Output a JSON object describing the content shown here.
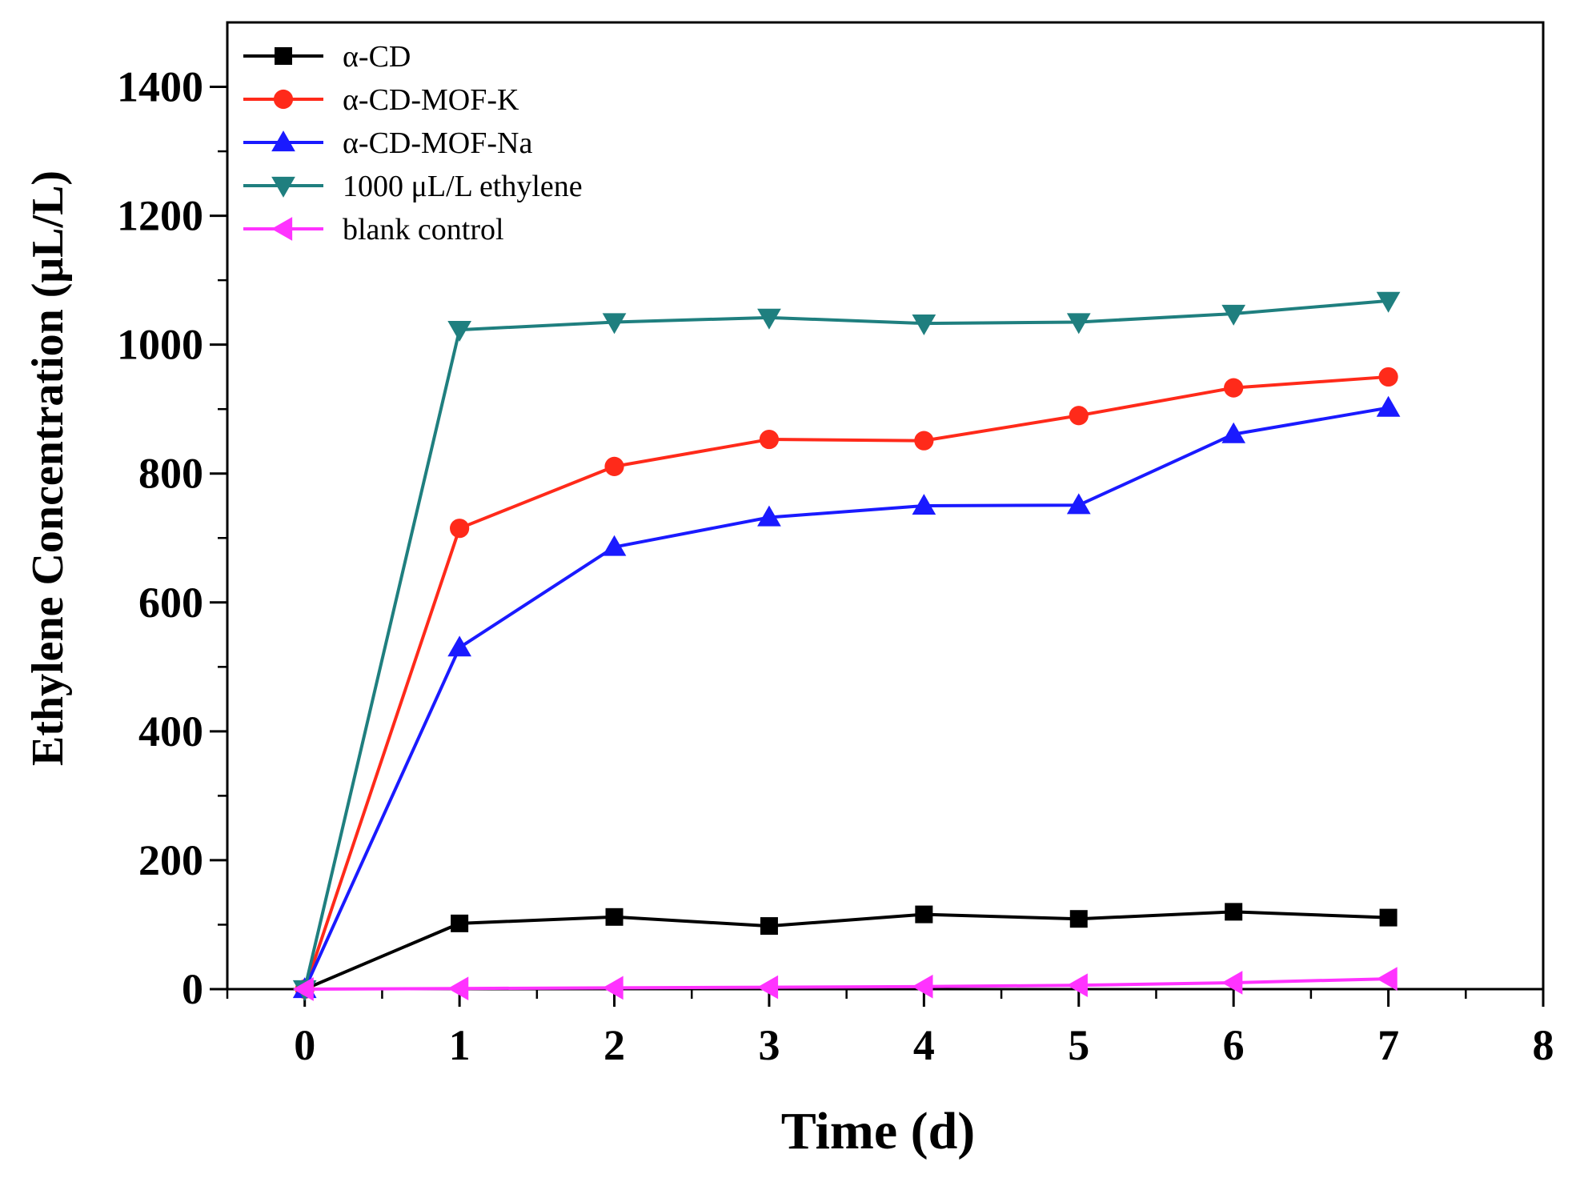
{
  "chart_data": {
    "type": "line",
    "xlabel": "Time (d)",
    "ylabel": "Ethylene Concentration (μL/L)",
    "xlim": [
      -0.5,
      8
    ],
    "ylim": [
      0,
      1500
    ],
    "xticks": [
      "0",
      "1",
      "2",
      "3",
      "4",
      "5",
      "6",
      "7",
      "8"
    ],
    "yticks": [
      "0",
      "200",
      "400",
      "600",
      "800",
      "1000",
      "1200",
      "1400"
    ],
    "legend_position": "top-left",
    "x": [
      0,
      1,
      2,
      3,
      4,
      5,
      6,
      7
    ],
    "series": [
      {
        "name": "α-CD",
        "color": "#000000",
        "marker": "square",
        "values": [
          0,
          102,
          112,
          98,
          116,
          109,
          120,
          111
        ]
      },
      {
        "name": "α-CD-MOF-K",
        "color": "#ff2a1a",
        "marker": "circle",
        "values": [
          0,
          715,
          811,
          853,
          851,
          890,
          933,
          950
        ]
      },
      {
        "name": "α-CD-MOF-Na",
        "color": "#1a1aff",
        "marker": "triangle-up",
        "values": [
          0,
          530,
          686,
          732,
          750,
          751,
          861,
          902
        ]
      },
      {
        "name": "1000 μL/L ethylene",
        "color": "#1f7f7f",
        "marker": "triangle-down",
        "values": [
          0,
          1023,
          1035,
          1042,
          1033,
          1035,
          1048,
          1068
        ]
      },
      {
        "name": "blank control",
        "color": "#ff33ff",
        "marker": "triangle-left",
        "values": [
          0,
          1,
          2,
          3,
          4,
          6,
          10,
          16
        ]
      }
    ]
  }
}
